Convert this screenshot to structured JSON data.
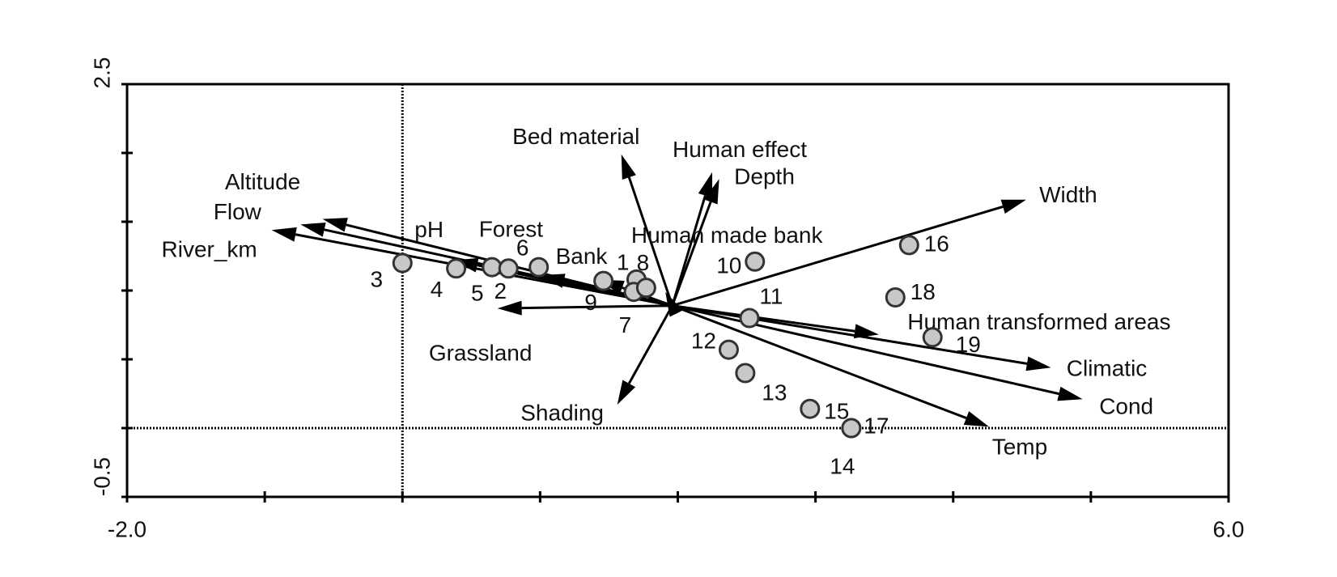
{
  "chart_data": {
    "type": "biplot",
    "xlim": [
      -2,
      6
    ],
    "ylim": [
      -0.5,
      2.5
    ],
    "xticks": [
      {
        "value": -2,
        "label": "-2.0"
      },
      {
        "value": 6,
        "label": "6.0"
      }
    ],
    "yticks": [
      -0.5,
      2.5
    ],
    "xminor_ticks": [
      -1,
      0,
      1,
      2,
      3,
      4,
      5
    ],
    "yminor_ticks": [
      0,
      0.5,
      1,
      1.5,
      2
    ],
    "zero_lines": true,
    "vector_origin": [
      1.96,
      0.89
    ],
    "vectors": {
      "names": [
        "Bed material",
        "Human effect",
        "Depth",
        "Width",
        "Altitude",
        "Flow",
        "River_km",
        "pH",
        "Forest",
        "Bank",
        "Human made bank",
        "Grassland",
        "Shading",
        "Human transformed areas",
        "Climatic",
        "Cond",
        "Temp"
      ],
      "x": [
        1.59,
        2.25,
        2.3,
        4.53,
        -0.58,
        -0.74,
        -0.95,
        0.37,
        1.0,
        1.43,
        1.91,
        0.69,
        1.56,
        3.46,
        4.71,
        4.94,
        4.26
      ],
      "y": [
        1.99,
        1.86,
        1.81,
        1.66,
        1.52,
        1.48,
        1.44,
        1.22,
        1.11,
        1.08,
        0.99,
        0.87,
        0.17,
        0.68,
        0.44,
        0.21,
        0.01
      ]
    },
    "points": {
      "names": [
        "3",
        "4",
        "5",
        "2",
        "6",
        "1",
        "8",
        "9",
        "7",
        "10",
        "11",
        "12",
        "13",
        "15",
        "17",
        "14",
        "16",
        "18",
        "19"
      ],
      "x": [
        0.0,
        0.39,
        0.65,
        0.77,
        0.99,
        1.46,
        1.7,
        1.68,
        1.77,
        2.56,
        2.52,
        2.37,
        2.49,
        2.96,
        3.26,
        3.26,
        3.68,
        3.58,
        3.85
      ],
      "y": [
        1.2,
        1.16,
        1.17,
        1.16,
        1.17,
        1.07,
        1.08,
        0.99,
        1.02,
        1.21,
        0.8,
        0.57,
        0.4,
        0.14,
        0.0,
        0.0,
        1.33,
        0.95,
        0.66
      ]
    }
  }
}
